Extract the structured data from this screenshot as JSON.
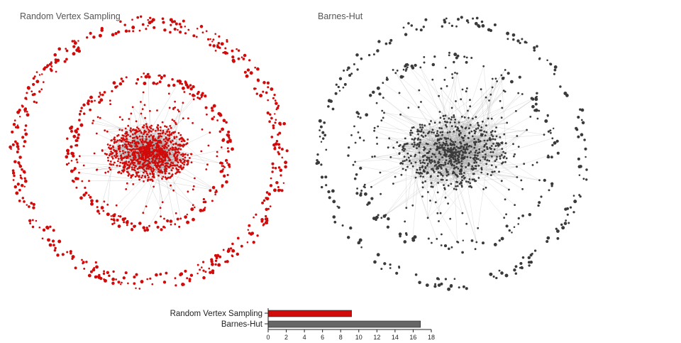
{
  "panels": [
    {
      "title": "Random Vertex Sampling",
      "node_color": "#d10a0a",
      "edge_color": "#888888"
    },
    {
      "title": "Barnes-Hut",
      "node_color": "#3a3a3a",
      "edge_color": "#9a9a9a"
    }
  ],
  "chart_data": {
    "type": "bar",
    "orientation": "horizontal",
    "categories": [
      "Random Vertex Sampling",
      "Barnes-Hut"
    ],
    "values": [
      9.2,
      16.8
    ],
    "colors": [
      "#d10a0a",
      "#666666"
    ],
    "xlim": [
      0,
      18
    ],
    "xticks": [
      0,
      2,
      4,
      6,
      8,
      10,
      12,
      14,
      16,
      18
    ],
    "title": "",
    "xlabel": "",
    "ylabel": ""
  }
}
